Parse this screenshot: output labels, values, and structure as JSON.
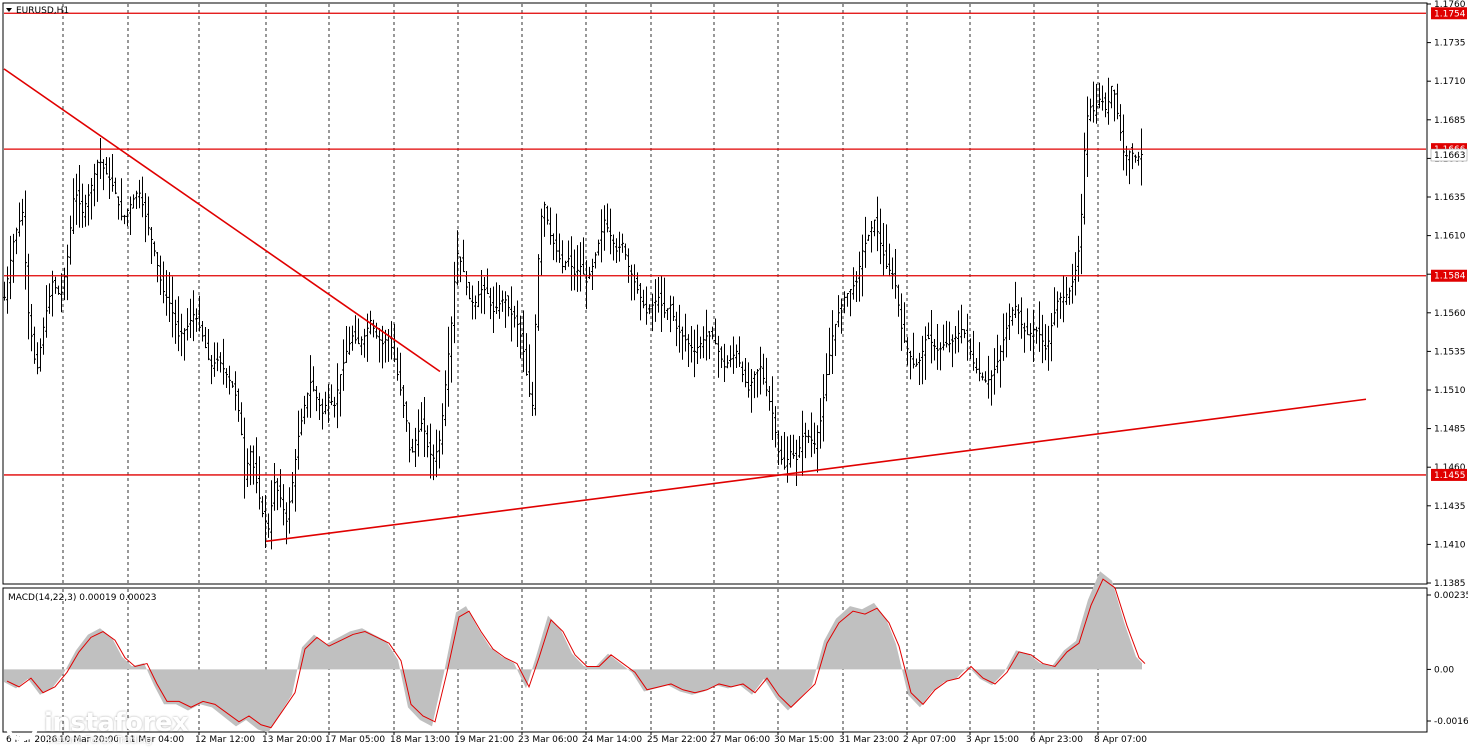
{
  "chart_data": [
    {
      "type": "candlestick",
      "symbol": "EURUSD,H1",
      "ylim": [
        1.1385,
        1.176
      ],
      "y_ticks": [
        "1.1760",
        "1.1735",
        "1.1710",
        "1.1685",
        "1.1660",
        "1.1635",
        "1.1610",
        "1.1585",
        "1.1560",
        "1.1535",
        "1.1510",
        "1.1485",
        "1.1460",
        "1.1435",
        "1.1410",
        "1.1385"
      ],
      "x_ticks": [
        "6 Mar 2026",
        "10 Mar 20:00",
        "11 Mar 04:00",
        "12 Mar 12:00",
        "13 Mar 20:00",
        "17 Mar 05:00",
        "18 Mar 13:00",
        "19 Mar 21:00",
        "23 Mar 06:00",
        "24 Mar 14:00",
        "25 Mar 22:00",
        "27 Mar 06:00",
        "30 Mar 15:00",
        "31 Mar 23:00",
        "2 Apr 07:00",
        "3 Apr 15:00",
        "6 Apr 23:00",
        "8 Apr 07:00"
      ],
      "current_price": "1.1663",
      "price_path": [
        [
          0,
          1.157
        ],
        [
          10,
          1.161
        ],
        [
          18,
          1.1625
        ],
        [
          24,
          1.156
        ],
        [
          32,
          1.152
        ],
        [
          40,
          1.1555
        ],
        [
          48,
          1.158
        ],
        [
          56,
          1.157
        ],
        [
          62,
          1.159
        ],
        [
          70,
          1.164
        ],
        [
          78,
          1.1625
        ],
        [
          86,
          1.164
        ],
        [
          94,
          1.166
        ],
        [
          102,
          1.165
        ],
        [
          110,
          1.164
        ],
        [
          118,
          1.162
        ],
        [
          126,
          1.163
        ],
        [
          134,
          1.164
        ],
        [
          142,
          1.162
        ],
        [
          150,
          1.16
        ],
        [
          158,
          1.1575
        ],
        [
          166,
          1.1565
        ],
        [
          174,
          1.1545
        ],
        [
          182,
          1.155
        ],
        [
          190,
          1.156
        ],
        [
          198,
          1.1545
        ],
        [
          206,
          1.1525
        ],
        [
          214,
          1.153
        ],
        [
          222,
          1.152
        ],
        [
          230,
          1.151
        ],
        [
          236,
          1.149
        ],
        [
          240,
          1.1455
        ],
        [
          246,
          1.147
        ],
        [
          252,
          1.145
        ],
        [
          258,
          1.143
        ],
        [
          264,
          1.142
        ],
        [
          270,
          1.145
        ],
        [
          276,
          1.144
        ],
        [
          282,
          1.1425
        ],
        [
          288,
          1.145
        ],
        [
          294,
          1.148
        ],
        [
          300,
          1.15
        ],
        [
          306,
          1.1515
        ],
        [
          312,
          1.1505
        ],
        [
          318,
          1.1495
        ],
        [
          324,
          1.1505
        ],
        [
          330,
          1.15
        ],
        [
          336,
          1.152
        ],
        [
          342,
          1.1535
        ],
        [
          348,
          1.1545
        ],
        [
          354,
          1.154
        ],
        [
          360,
          1.1545
        ],
        [
          366,
          1.1555
        ],
        [
          372,
          1.1545
        ],
        [
          378,
          1.154
        ],
        [
          384,
          1.1545
        ],
        [
          390,
          1.153
        ],
        [
          396,
          1.151
        ],
        [
          402,
          1.149
        ],
        [
          406,
          1.1465
        ],
        [
          412,
          1.148
        ],
        [
          418,
          1.149
        ],
        [
          424,
          1.147
        ],
        [
          430,
          1.1465
        ],
        [
          436,
          1.148
        ],
        [
          442,
          1.152
        ],
        [
          448,
          1.156
        ],
        [
          452,
          1.16
        ],
        [
          458,
          1.159
        ],
        [
          464,
          1.157
        ],
        [
          470,
          1.1565
        ],
        [
          476,
          1.1575
        ],
        [
          482,
          1.1575
        ],
        [
          488,
          1.156
        ],
        [
          494,
          1.1565
        ],
        [
          500,
          1.157
        ],
        [
          506,
          1.156
        ],
        [
          512,
          1.1555
        ],
        [
          518,
          1.154
        ],
        [
          524,
          1.151
        ],
        [
          528,
          1.15
        ],
        [
          532,
          1.157
        ],
        [
          536,
          1.162
        ],
        [
          540,
          1.163
        ],
        [
          546,
          1.161
        ],
        [
          552,
          1.16
        ],
        [
          558,
          1.159
        ],
        [
          564,
          1.1595
        ],
        [
          570,
          1.1585
        ],
        [
          576,
          1.159
        ],
        [
          582,
          1.158
        ],
        [
          588,
          1.159
        ],
        [
          594,
          1.1605
        ],
        [
          600,
          1.162
        ],
        [
          606,
          1.161
        ],
        [
          612,
          1.16
        ],
        [
          618,
          1.1605
        ],
        [
          624,
          1.159
        ],
        [
          630,
          1.158
        ],
        [
          636,
          1.157
        ],
        [
          642,
          1.156
        ],
        [
          648,
          1.1565
        ],
        [
          654,
          1.157
        ],
        [
          660,
          1.156
        ],
        [
          666,
          1.1565
        ],
        [
          672,
          1.155
        ],
        [
          678,
          1.1545
        ],
        [
          684,
          1.154
        ],
        [
          690,
          1.1535
        ],
        [
          696,
          1.154
        ],
        [
          702,
          1.1545
        ],
        [
          708,
          1.1545
        ],
        [
          714,
          1.1535
        ],
        [
          720,
          1.1525
        ],
        [
          726,
          1.153
        ],
        [
          732,
          1.1535
        ],
        [
          738,
          1.152
        ],
        [
          744,
          1.151
        ],
        [
          750,
          1.152
        ],
        [
          756,
          1.1525
        ],
        [
          762,
          1.151
        ],
        [
          768,
          1.1495
        ],
        [
          774,
          1.147
        ],
        [
          780,
          1.146
        ],
        [
          786,
          1.147
        ],
        [
          792,
          1.1465
        ],
        [
          798,
          1.148
        ],
        [
          804,
          1.148
        ],
        [
          810,
          1.1475
        ],
        [
          816,
          1.149
        ],
        [
          822,
          1.152
        ],
        [
          828,
          1.1545
        ],
        [
          834,
          1.156
        ],
        [
          840,
          1.157
        ],
        [
          846,
          1.1575
        ],
        [
          852,
          1.158
        ],
        [
          858,
          1.16
        ],
        [
          864,
          1.161
        ],
        [
          870,
          1.162
        ],
        [
          876,
          1.1605
        ],
        [
          882,
          1.159
        ],
        [
          888,
          1.1585
        ],
        [
          892,
          1.1575
        ],
        [
          898,
          1.1545
        ],
        [
          904,
          1.1535
        ],
        [
          910,
          1.1525
        ],
        [
          916,
          1.153
        ],
        [
          922,
          1.1545
        ],
        [
          928,
          1.154
        ],
        [
          934,
          1.1535
        ],
        [
          940,
          1.154
        ],
        [
          946,
          1.154
        ],
        [
          952,
          1.1545
        ],
        [
          958,
          1.155
        ],
        [
          964,
          1.154
        ],
        [
          970,
          1.1525
        ],
        [
          976,
          1.152
        ],
        [
          982,
          1.1515
        ],
        [
          988,
          1.152
        ],
        [
          994,
          1.153
        ],
        [
          1000,
          1.1545
        ],
        [
          1006,
          1.156
        ],
        [
          1012,
          1.1565
        ],
        [
          1018,
          1.155
        ],
        [
          1024,
          1.1545
        ],
        [
          1030,
          1.155
        ],
        [
          1036,
          1.1545
        ],
        [
          1042,
          1.1535
        ],
        [
          1048,
          1.1555
        ],
        [
          1054,
          1.157
        ],
        [
          1060,
          1.157
        ],
        [
          1066,
          1.1575
        ],
        [
          1072,
          1.159
        ],
        [
          1076,
          1.161
        ],
        [
          1080,
          1.1665
        ],
        [
          1084,
          1.1695
        ],
        [
          1090,
          1.169
        ],
        [
          1096,
          1.17
        ],
        [
          1102,
          1.169
        ],
        [
          1108,
          1.171
        ],
        [
          1114,
          1.1685
        ],
        [
          1120,
          1.166
        ],
        [
          1126,
          1.1665
        ],
        [
          1132,
          1.166
        ],
        [
          1138,
          1.1663
        ]
      ],
      "levels": [
        {
          "value": 1.1754,
          "label": "1.1754",
          "color": "#e00000"
        },
        {
          "value": 1.1666,
          "label": "1.1666",
          "color": "#e00000"
        },
        {
          "value": 1.1584,
          "label": "1.1584",
          "color": "#e00000"
        },
        {
          "value": 1.1455,
          "label": "1.1455",
          "color": "#e00000"
        }
      ],
      "trendlines": [
        {
          "x1": 0,
          "y1": 1.1718,
          "x2": 436,
          "y2": 1.1522,
          "color": "#e00000"
        },
        {
          "x1": 262,
          "y1": 1.1412,
          "x2": 1362,
          "y2": 1.1504,
          "color": "#e00000"
        }
      ]
    },
    {
      "type": "area",
      "label": "MACD(14,22,3) 0.00019 0.00023",
      "ylim": [
        -0.00163,
        0.00235
      ],
      "y_ticks": [
        "0.00235",
        "0.00",
        "-0.00163"
      ],
      "area_color": "#c0c0c0",
      "signal_color": "#e00000",
      "values": [
        [
          0,
          -0.0004
        ],
        [
          12,
          -0.0006
        ],
        [
          24,
          -0.0003
        ],
        [
          36,
          -0.0008
        ],
        [
          48,
          -0.0006
        ],
        [
          60,
          -0.0001
        ],
        [
          72,
          0.0006
        ],
        [
          84,
          0.0011
        ],
        [
          96,
          0.0013
        ],
        [
          108,
          0.001
        ],
        [
          118,
          0.0004
        ],
        [
          128,
          0.0001
        ],
        [
          140,
          0.0002
        ],
        [
          150,
          -0.0005
        ],
        [
          160,
          -0.0011
        ],
        [
          172,
          -0.0011
        ],
        [
          184,
          -0.0013
        ],
        [
          196,
          -0.0011
        ],
        [
          208,
          -0.0012
        ],
        [
          220,
          -0.0015
        ],
        [
          232,
          -0.0018
        ],
        [
          242,
          -0.0016
        ],
        [
          254,
          -0.0019
        ],
        [
          264,
          -0.002
        ],
        [
          276,
          -0.0014
        ],
        [
          288,
          -0.0008
        ],
        [
          298,
          0.0007
        ],
        [
          310,
          0.0011
        ],
        [
          322,
          0.0008
        ],
        [
          334,
          0.001
        ],
        [
          346,
          0.0012
        ],
        [
          358,
          0.0013
        ],
        [
          370,
          0.0011
        ],
        [
          382,
          0.0009
        ],
        [
          394,
          0.0003
        ],
        [
          404,
          -0.0012
        ],
        [
          416,
          -0.0016
        ],
        [
          428,
          -0.0018
        ],
        [
          440,
          -0.0001
        ],
        [
          452,
          0.0018
        ],
        [
          462,
          0.002
        ],
        [
          474,
          0.0013
        ],
        [
          486,
          0.0007
        ],
        [
          498,
          0.0004
        ],
        [
          510,
          0.0002
        ],
        [
          522,
          -0.0006
        ],
        [
          532,
          0.0004
        ],
        [
          544,
          0.0017
        ],
        [
          556,
          0.0013
        ],
        [
          568,
          0.0005
        ],
        [
          580,
          0.0001
        ],
        [
          592,
          0.0001
        ],
        [
          604,
          0.0005
        ],
        [
          616,
          0.0002
        ],
        [
          628,
          -0.0001
        ],
        [
          640,
          -0.0007
        ],
        [
          652,
          -0.0006
        ],
        [
          664,
          -0.0005
        ],
        [
          676,
          -0.0007
        ],
        [
          688,
          -0.0008
        ],
        [
          700,
          -0.0007
        ],
        [
          712,
          -0.0005
        ],
        [
          724,
          -0.0006
        ],
        [
          736,
          -0.0005
        ],
        [
          748,
          -0.0008
        ],
        [
          760,
          -0.0003
        ],
        [
          772,
          -0.0009
        ],
        [
          784,
          -0.0013
        ],
        [
          796,
          -0.0009
        ],
        [
          808,
          -0.0005
        ],
        [
          820,
          0.0009
        ],
        [
          832,
          0.0016
        ],
        [
          846,
          0.002
        ],
        [
          858,
          0.0019
        ],
        [
          870,
          0.0021
        ],
        [
          882,
          0.0016
        ],
        [
          892,
          0.0008
        ],
        [
          904,
          -0.0008
        ],
        [
          916,
          -0.0012
        ],
        [
          928,
          -0.0007
        ],
        [
          940,
          -0.0004
        ],
        [
          952,
          -0.0003
        ],
        [
          964,
          0.0001
        ],
        [
          976,
          -0.0003
        ],
        [
          988,
          -0.0005
        ],
        [
          1000,
          -0.0001
        ],
        [
          1012,
          0.0006
        ],
        [
          1024,
          0.0005
        ],
        [
          1036,
          0.0002
        ],
        [
          1048,
          0.0001
        ],
        [
          1060,
          0.0006
        ],
        [
          1072,
          0.0009
        ],
        [
          1084,
          0.0022
        ],
        [
          1096,
          0.0031
        ],
        [
          1108,
          0.0028
        ],
        [
          1120,
          0.0015
        ],
        [
          1132,
          0.0004
        ],
        [
          1138,
          0.0002
        ]
      ]
    }
  ],
  "watermark": {
    "brand": "instaforex",
    "tagline": "Instant Forex Trading"
  }
}
